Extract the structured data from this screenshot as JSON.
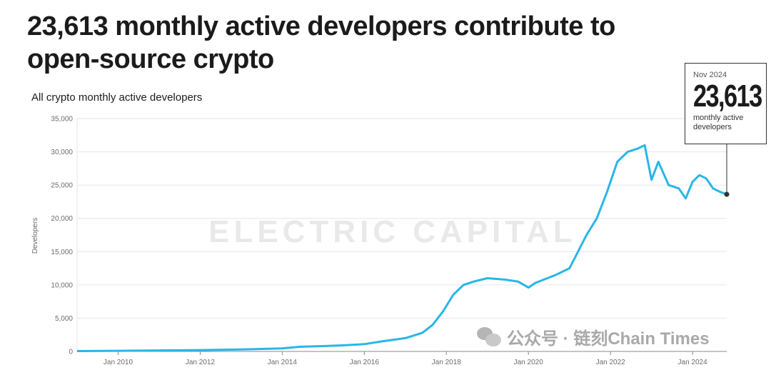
{
  "headline": "23,613 monthly active developers contribute to open-source crypto",
  "subtitle": "All crypto monthly active developers",
  "watermark": "ELECTRIC CAPITAL",
  "callout": {
    "date": "Nov 2024",
    "value": "23,613",
    "label": "monthly active developers"
  },
  "wechat_badge": {
    "icon": "wechat-icon",
    "text": "公众号 · 链刻Chain Times"
  },
  "colors": {
    "line": "#29b6e6",
    "grid": "#e6e6e6",
    "axis": "#8a8a8a"
  },
  "chart_data": {
    "type": "line",
    "title": "",
    "ylabel": "Developers",
    "xlabel": "",
    "ylim": [
      0,
      35000
    ],
    "xlim": [
      "2009-01",
      "2024-11"
    ],
    "y_ticks": [
      0,
      5000,
      10000,
      15000,
      20000,
      25000,
      30000,
      35000
    ],
    "y_tick_labels": [
      "0",
      "5,000",
      "10,000",
      "15,000",
      "20,000",
      "25,000",
      "30,000",
      "35,000"
    ],
    "x_ticks": [
      "2010-01",
      "2012-01",
      "2014-01",
      "2016-01",
      "2018-01",
      "2020-01",
      "2022-01",
      "2024-01"
    ],
    "x_tick_labels": [
      "Jan 2010",
      "Jan 2012",
      "Jan 2014",
      "Jan 2016",
      "Jan 2018",
      "Jan 2020",
      "Jan 2022",
      "Jan 2024"
    ],
    "grid": true,
    "series": [
      {
        "values": [
          [
            "2009-01",
            50
          ],
          [
            "2010-01",
            100
          ],
          [
            "2011-01",
            150
          ],
          [
            "2012-01",
            200
          ],
          [
            "2013-01",
            300
          ],
          [
            "2014-01",
            450
          ],
          [
            "2014-06",
            700
          ],
          [
            "2015-01",
            800
          ],
          [
            "2015-06",
            900
          ],
          [
            "2016-01",
            1100
          ],
          [
            "2016-06",
            1500
          ],
          [
            "2017-01",
            2000
          ],
          [
            "2017-06",
            2800
          ],
          [
            "2017-09",
            4000
          ],
          [
            "2017-12",
            6000
          ],
          [
            "2018-03",
            8500
          ],
          [
            "2018-06",
            10000
          ],
          [
            "2018-09",
            10500
          ],
          [
            "2019-01",
            11000
          ],
          [
            "2019-06",
            10800
          ],
          [
            "2019-10",
            10500
          ],
          [
            "2020-01",
            9600
          ],
          [
            "2020-03",
            10300
          ],
          [
            "2020-06",
            10900
          ],
          [
            "2020-09",
            11500
          ],
          [
            "2021-01",
            12500
          ],
          [
            "2021-03",
            14500
          ],
          [
            "2021-06",
            17500
          ],
          [
            "2021-09",
            20000
          ],
          [
            "2021-12",
            24000
          ],
          [
            "2022-03",
            28500
          ],
          [
            "2022-06",
            30000
          ],
          [
            "2022-09",
            30500
          ],
          [
            "2022-11",
            31000
          ],
          [
            "2023-01",
            25800
          ],
          [
            "2023-03",
            28500
          ],
          [
            "2023-06",
            25000
          ],
          [
            "2023-09",
            24500
          ],
          [
            "2023-11",
            23000
          ],
          [
            "2024-01",
            25500
          ],
          [
            "2024-03",
            26500
          ],
          [
            "2024-05",
            26000
          ],
          [
            "2024-07",
            24500
          ],
          [
            "2024-09",
            24000
          ],
          [
            "2024-11",
            23613
          ]
        ]
      }
    ]
  }
}
